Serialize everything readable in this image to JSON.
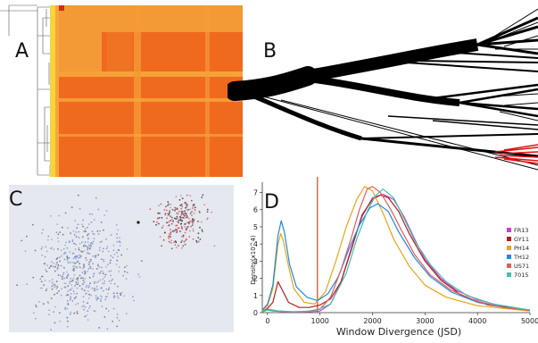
{
  "panels": {
    "a": {
      "label": "A"
    },
    "b": {
      "label": "B"
    },
    "c": {
      "label": "C"
    },
    "d": {
      "label": "D"
    }
  },
  "colors": {
    "heat_dark": "#ef6a1f",
    "heat_light": "#f7a53a",
    "heat_yellow": "#f6d43a",
    "tree": "#000000",
    "tree_highlight": "#e01010",
    "scatter_bg": "#e6e8f0",
    "scatter_blue": "#6f8fc9",
    "scatter_red": "#d6474a",
    "threshold_line": "#d9532b"
  },
  "chart_data": {
    "type": "line",
    "xlabel": "Window Divergence (JSD)",
    "ylabel": "Density(x10^4)",
    "x_ticks": [
      "0",
      "1000",
      "2000",
      "3000",
      "4000",
      "5000"
    ],
    "y_ticks": [
      "0",
      "1",
      "2",
      "3",
      "4",
      "5",
      "6",
      "7"
    ],
    "xlim": [
      -100,
      5000
    ],
    "ylim": [
      0,
      7.6
    ],
    "threshold_x": 950,
    "grid": false,
    "legend_position": "right",
    "series": [
      {
        "name": "FR13",
        "color": "#c83fd0",
        "points": [
          [
            -100,
            0.05
          ],
          [
            0,
            0.15
          ],
          [
            100,
            0.1
          ],
          [
            200,
            0.08
          ],
          [
            300,
            0.05
          ],
          [
            500,
            0.03
          ],
          [
            800,
            0.05
          ],
          [
            1000,
            0.1
          ],
          [
            1200,
            0.5
          ],
          [
            1400,
            1.8
          ],
          [
            1600,
            3.8
          ],
          [
            1800,
            5.6
          ],
          [
            2000,
            6.7
          ],
          [
            2200,
            6.9
          ],
          [
            2400,
            6.6
          ],
          [
            2600,
            5.6
          ],
          [
            2800,
            4.3
          ],
          [
            3000,
            3.1
          ],
          [
            3300,
            2.0
          ],
          [
            3600,
            1.3
          ],
          [
            4000,
            0.75
          ],
          [
            4500,
            0.35
          ],
          [
            5000,
            0.15
          ]
        ]
      },
      {
        "name": "GY11",
        "color": "#b31d1d",
        "points": [
          [
            -100,
            0.05
          ],
          [
            0,
            0.25
          ],
          [
            100,
            0.6
          ],
          [
            200,
            1.8
          ],
          [
            300,
            1.2
          ],
          [
            400,
            0.6
          ],
          [
            600,
            0.3
          ],
          [
            800,
            0.3
          ],
          [
            1000,
            0.45
          ],
          [
            1200,
            0.8
          ],
          [
            1400,
            1.8
          ],
          [
            1600,
            3.7
          ],
          [
            1800,
            5.7
          ],
          [
            2000,
            6.6
          ],
          [
            2150,
            6.85
          ],
          [
            2300,
            6.7
          ],
          [
            2500,
            5.9
          ],
          [
            2700,
            4.6
          ],
          [
            3000,
            3.0
          ],
          [
            3300,
            1.9
          ],
          [
            3700,
            1.0
          ],
          [
            4200,
            0.45
          ],
          [
            5000,
            0.12
          ]
        ]
      },
      {
        "name": "PH14",
        "color": "#e8a517",
        "points": [
          [
            -100,
            0.1
          ],
          [
            0,
            0.4
          ],
          [
            100,
            1.4
          ],
          [
            200,
            4.0
          ],
          [
            250,
            4.6
          ],
          [
            300,
            4.2
          ],
          [
            400,
            2.7
          ],
          [
            500,
            1.4
          ],
          [
            700,
            0.6
          ],
          [
            900,
            0.5
          ],
          [
            1100,
            1.2
          ],
          [
            1300,
            3.0
          ],
          [
            1500,
            5.0
          ],
          [
            1700,
            6.6
          ],
          [
            1850,
            7.35
          ],
          [
            2000,
            7.1
          ],
          [
            2200,
            5.8
          ],
          [
            2400,
            4.3
          ],
          [
            2700,
            2.7
          ],
          [
            3000,
            1.6
          ],
          [
            3400,
            0.9
          ],
          [
            4000,
            0.4
          ],
          [
            5000,
            0.1
          ]
        ]
      },
      {
        "name": "TH12",
        "color": "#1f8ae0",
        "points": [
          [
            -100,
            0.15
          ],
          [
            0,
            0.5
          ],
          [
            100,
            1.6
          ],
          [
            200,
            4.5
          ],
          [
            260,
            5.35
          ],
          [
            320,
            4.7
          ],
          [
            420,
            2.8
          ],
          [
            550,
            1.5
          ],
          [
            750,
            0.9
          ],
          [
            950,
            0.7
          ],
          [
            1150,
            1.1
          ],
          [
            1350,
            2.1
          ],
          [
            1550,
            3.7
          ],
          [
            1750,
            5.1
          ],
          [
            1950,
            6.1
          ],
          [
            2100,
            6.35
          ],
          [
            2300,
            5.9
          ],
          [
            2500,
            4.7
          ],
          [
            2800,
            3.2
          ],
          [
            3100,
            2.1
          ],
          [
            3500,
            1.2
          ],
          [
            4000,
            0.6
          ],
          [
            4500,
            0.3
          ],
          [
            5000,
            0.15
          ]
        ]
      },
      {
        "name": "US71",
        "color": "#e55a5a",
        "points": [
          [
            -100,
            0.05
          ],
          [
            0,
            0.2
          ],
          [
            100,
            0.15
          ],
          [
            200,
            0.1
          ],
          [
            400,
            0.05
          ],
          [
            700,
            0.05
          ],
          [
            1000,
            0.2
          ],
          [
            1200,
            0.9
          ],
          [
            1400,
            2.5
          ],
          [
            1600,
            4.4
          ],
          [
            1750,
            6.0
          ],
          [
            1900,
            7.2
          ],
          [
            2000,
            7.35
          ],
          [
            2150,
            7.0
          ],
          [
            2350,
            6.0
          ],
          [
            2550,
            4.8
          ],
          [
            2800,
            3.4
          ],
          [
            3100,
            2.2
          ],
          [
            3500,
            1.3
          ],
          [
            4000,
            0.65
          ],
          [
            4500,
            0.3
          ],
          [
            5000,
            0.12
          ]
        ]
      },
      {
        "name": "7015",
        "color": "#3fc2a8",
        "points": [
          [
            -100,
            0.05
          ],
          [
            0,
            0.15
          ],
          [
            200,
            0.1
          ],
          [
            500,
            0.05
          ],
          [
            900,
            0.1
          ],
          [
            1200,
            0.5
          ],
          [
            1500,
            2.3
          ],
          [
            1700,
            4.3
          ],
          [
            1900,
            5.9
          ],
          [
            2050,
            6.8
          ],
          [
            2200,
            7.2
          ],
          [
            2400,
            6.7
          ],
          [
            2600,
            5.5
          ],
          [
            2800,
            4.2
          ],
          [
            3100,
            2.8
          ],
          [
            3400,
            1.8
          ],
          [
            3800,
            1.0
          ],
          [
            4300,
            0.5
          ],
          [
            5000,
            0.15
          ]
        ]
      }
    ]
  }
}
